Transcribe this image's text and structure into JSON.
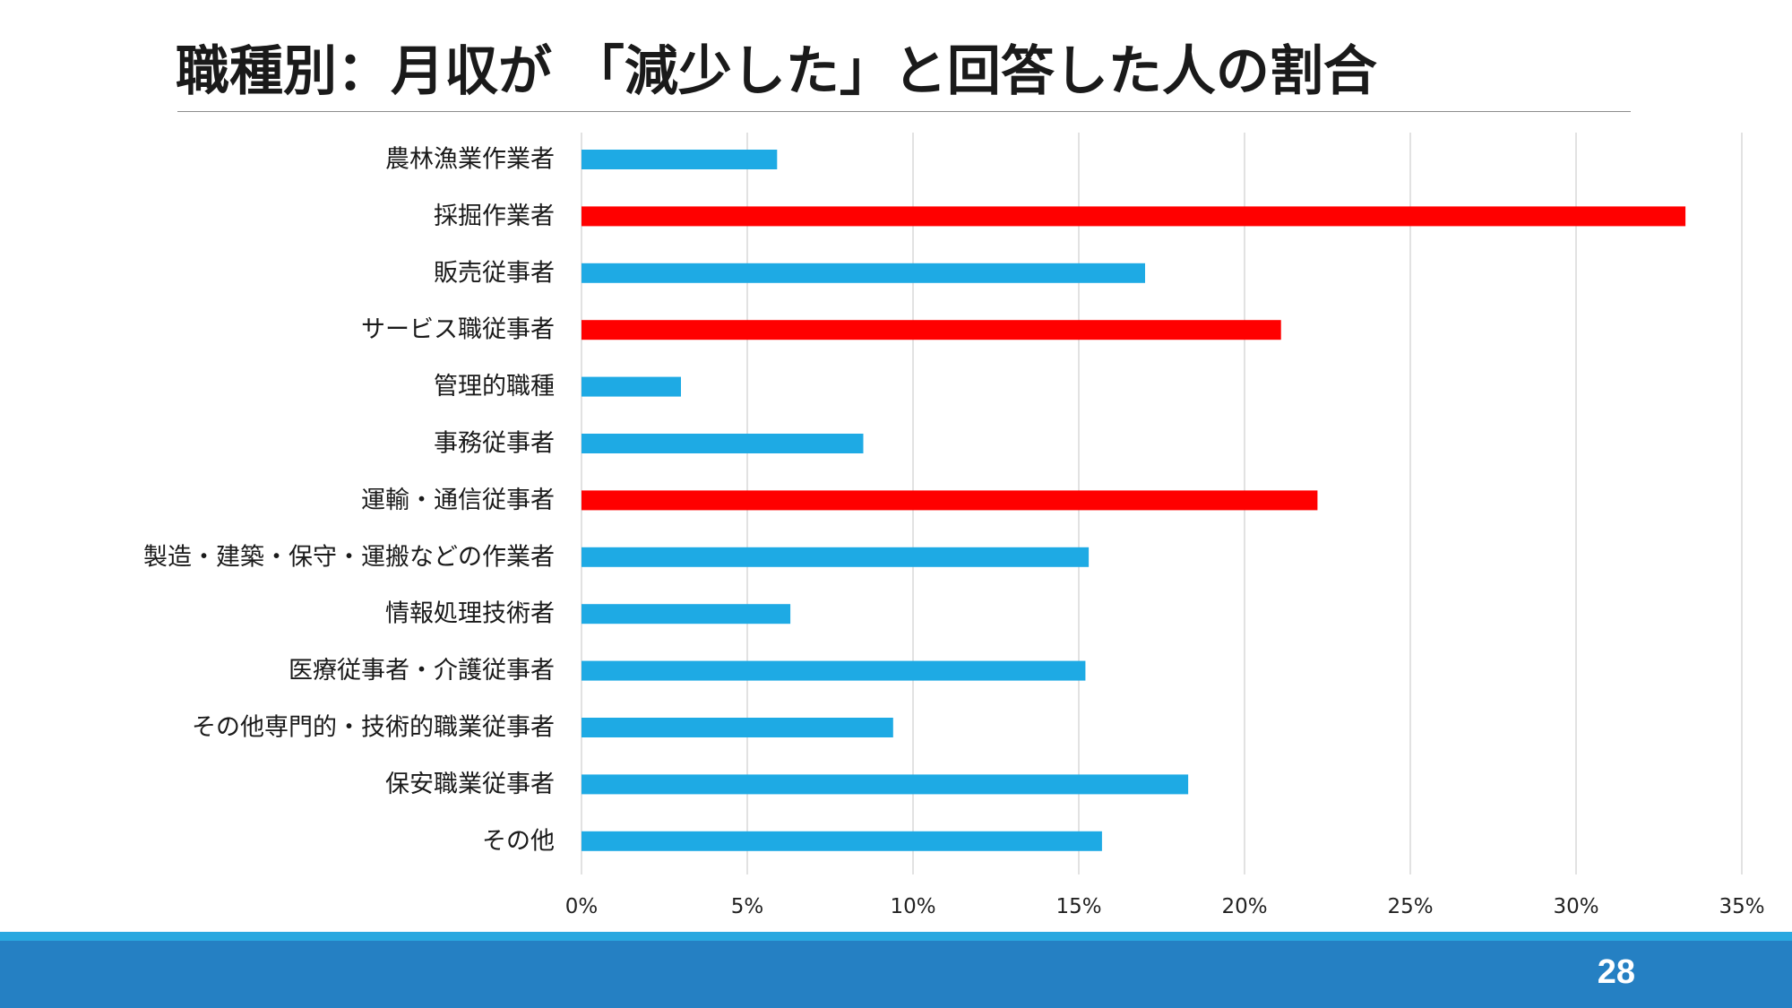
{
  "slide": {
    "title": "職種別：月収が 「減少した」と回答した人の割合",
    "page_number": "28"
  },
  "colors": {
    "bar_default": "#1eaae4",
    "bar_highlight": "#ff0000",
    "footer_band": "#2580c3",
    "footer_band_accent": "#29a8e0"
  },
  "chart_data": {
    "type": "bar",
    "orientation": "horizontal",
    "title": "",
    "xlabel": "",
    "ylabel": "",
    "xlim": [
      0,
      35
    ],
    "x_ticks": [
      0,
      5,
      10,
      15,
      20,
      25,
      30,
      35
    ],
    "x_tick_labels": [
      "0%",
      "5%",
      "10%",
      "15%",
      "20%",
      "25%",
      "30%",
      "35%"
    ],
    "grid": "vertical",
    "legend": "none",
    "categories": [
      "農林漁業作業者",
      "採掘作業者",
      "販売従事者",
      "サービス職従事者",
      "管理的職種",
      "事務従事者",
      "運輸・通信従事者",
      "製造・建築・保守・運搬などの作業者",
      "情報処理技術者",
      "医療従事者・介護従事者",
      "その他専門的・技術的職業従事者",
      "保安職業従事者",
      "その他"
    ],
    "values": [
      5.9,
      33.3,
      17.0,
      21.1,
      3.0,
      8.5,
      22.2,
      15.3,
      6.3,
      15.2,
      9.4,
      18.3,
      15.7
    ],
    "highlighted": [
      false,
      true,
      false,
      true,
      false,
      false,
      true,
      false,
      false,
      false,
      false,
      false,
      false
    ]
  }
}
